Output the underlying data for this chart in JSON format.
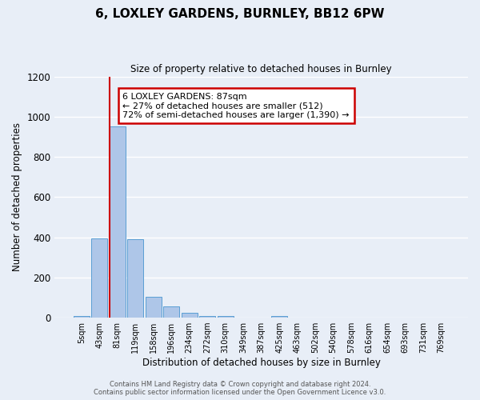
{
  "title": "6, LOXLEY GARDENS, BURNLEY, BB12 6PW",
  "subtitle": "Size of property relative to detached houses in Burnley",
  "xlabel": "Distribution of detached houses by size in Burnley",
  "ylabel": "Number of detached properties",
  "bar_labels": [
    "5sqm",
    "43sqm",
    "81sqm",
    "119sqm",
    "158sqm",
    "196sqm",
    "234sqm",
    "272sqm",
    "310sqm",
    "349sqm",
    "387sqm",
    "425sqm",
    "463sqm",
    "502sqm",
    "540sqm",
    "578sqm",
    "616sqm",
    "654sqm",
    "693sqm",
    "731sqm",
    "769sqm"
  ],
  "bar_values": [
    10,
    395,
    950,
    390,
    105,
    55,
    25,
    10,
    8,
    0,
    0,
    10,
    0,
    0,
    0,
    0,
    0,
    0,
    0,
    0,
    0
  ],
  "bar_color": "#aec6e8",
  "bar_edge_color": "#5a9fd4",
  "ylim": [
    0,
    1200
  ],
  "yticks": [
    0,
    200,
    400,
    600,
    800,
    1000,
    1200
  ],
  "vline_color": "#cc0000",
  "annotation_text": "6 LOXLEY GARDENS: 87sqm\n← 27% of detached houses are smaller (512)\n72% of semi-detached houses are larger (1,390) →",
  "annotation_box_color": "#cc0000",
  "background_color": "#e8eef7",
  "grid_color": "#ffffff",
  "footer_line1": "Contains HM Land Registry data © Crown copyright and database right 2024.",
  "footer_line2": "Contains public sector information licensed under the Open Government Licence v3.0."
}
